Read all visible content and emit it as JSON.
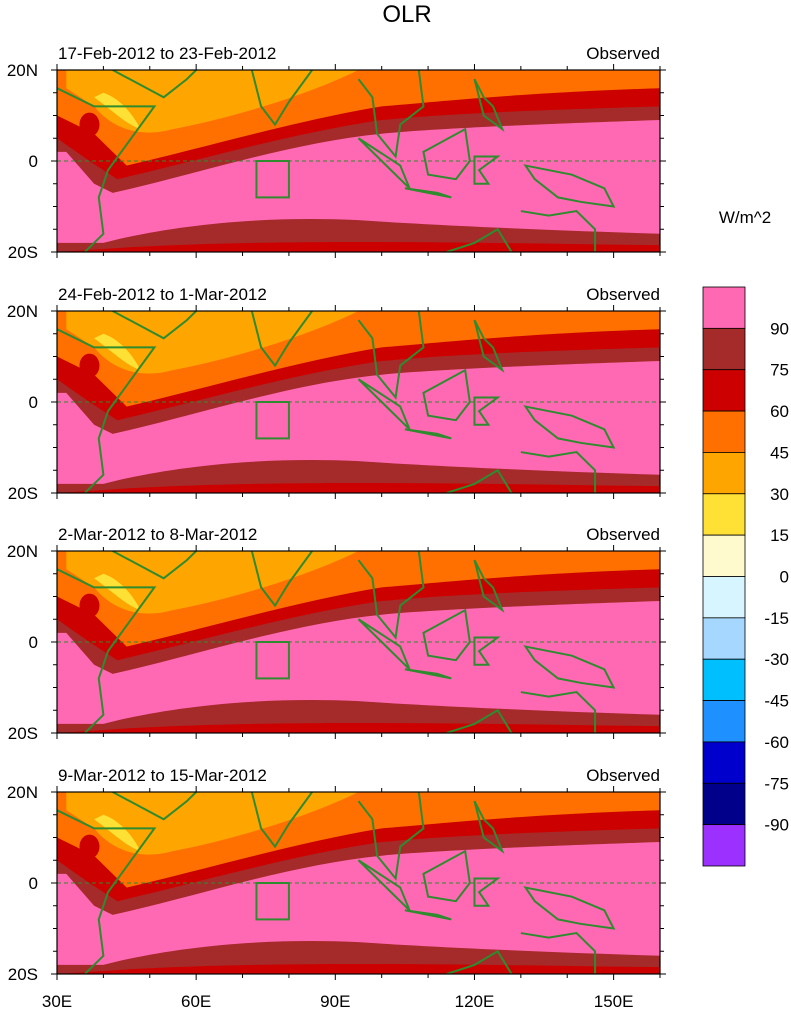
{
  "chart_data": {
    "type": "heatmap",
    "title": "OLR",
    "units": "W/m^2",
    "colorbar": {
      "labels": [
        "90",
        "75",
        "60",
        "45",
        "30",
        "15",
        "0",
        "-15",
        "-30",
        "-45",
        "-60",
        "-75",
        "-90"
      ],
      "colors": [
        "#ff69b4",
        "#a52a2a",
        "#cd0000",
        "#ff7000",
        "#ffa500",
        "#ffe135",
        "#fffacd",
        "#d6f5ff",
        "#a6d8ff",
        "#00bfff",
        "#1e90ff",
        "#0000cd",
        "#00008b",
        "#9b30ff"
      ]
    },
    "xaxis": {
      "ticks": [
        "30E",
        "60E",
        "90E",
        "120E",
        "150E"
      ],
      "range": [
        30,
        160
      ]
    },
    "yaxis": {
      "ticks": [
        "20N",
        "0",
        "20S"
      ],
      "range": [
        -20,
        20
      ]
    },
    "panels": [
      {
        "period": "17-Feb-2012 to 23-Feb-2012",
        "label": "Observed"
      },
      {
        "period": "24-Feb-2012 to 1-Mar-2012",
        "label": "Observed"
      },
      {
        "period": "2-Mar-2012 to 8-Mar-2012",
        "label": "Observed"
      },
      {
        "period": "9-Mar-2012 to 15-Mar-2012",
        "label": "Observed"
      }
    ]
  }
}
